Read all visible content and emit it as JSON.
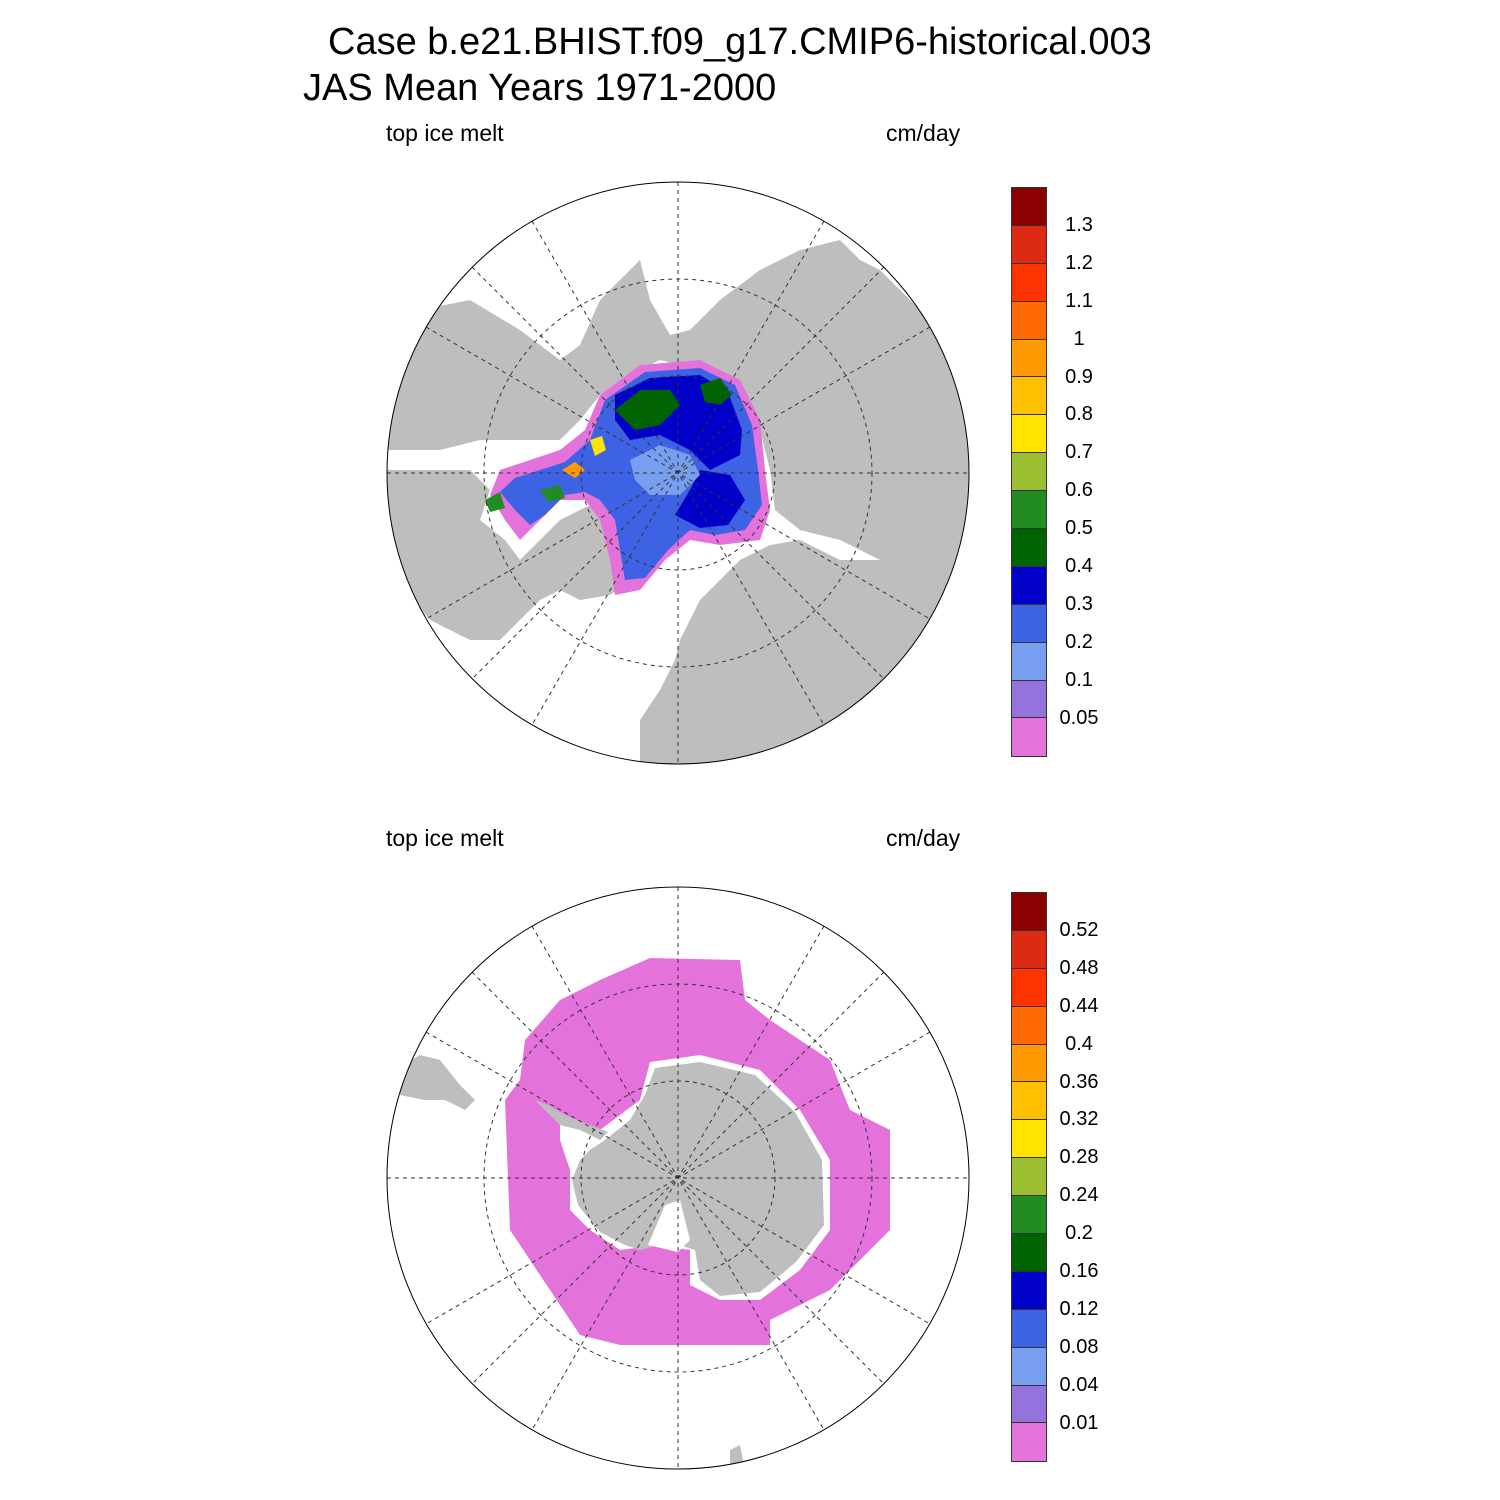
{
  "figure": {
    "title_line1": "Case b.e21.BHIST.f09_g17.CMIP6-historical.003",
    "title_line2": "JAS Mean   Years 1971-2000"
  },
  "panels": [
    {
      "variable_label": "top ice melt",
      "units_label": "cm/day",
      "hemisphere": "north",
      "colorbar": {
        "colors": [
          "#e373db",
          "#9473dc",
          "#789ef0",
          "#3d62e4",
          "#0000c8",
          "#006400",
          "#228b22",
          "#9bbf31",
          "#ffe400",
          "#ffc000",
          "#ff9a00",
          "#ff6900",
          "#ff3300",
          "#dd2a13",
          "#8b0000"
        ],
        "labels": [
          "0.05",
          "0.1",
          "0.2",
          "0.3",
          "0.4",
          "0.5",
          "0.6",
          "0.7",
          "0.8",
          "0.9",
          "1",
          "1.1",
          "1.2",
          "1.3"
        ]
      }
    },
    {
      "variable_label": "top ice melt",
      "units_label": "cm/day",
      "hemisphere": "south",
      "colorbar": {
        "colors": [
          "#e373db",
          "#9473dc",
          "#789ef0",
          "#3d62e4",
          "#0000c8",
          "#006400",
          "#228b22",
          "#9bbf31",
          "#ffe400",
          "#ffc000",
          "#ff9a00",
          "#ff6900",
          "#ff3300",
          "#dd2a13",
          "#8b0000"
        ],
        "labels": [
          "0.01",
          "0.04",
          "0.08",
          "0.12",
          "0.16",
          "0.2",
          "0.24",
          "0.28",
          "0.32",
          "0.36",
          "0.4",
          "0.44",
          "0.48",
          "0.52"
        ]
      }
    }
  ],
  "map_colors": {
    "land": "#bebebe",
    "ocean": "#ffffff"
  }
}
